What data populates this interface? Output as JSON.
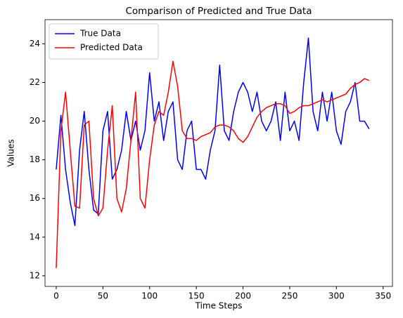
{
  "chart_data": {
    "type": "line",
    "title": "Comparison of Predicted and True Data",
    "x_label": "Time Steps",
    "y_label": "Values",
    "x": [
      0,
      5,
      10,
      15,
      20,
      25,
      30,
      35,
      40,
      45,
      50,
      55,
      60,
      65,
      70,
      75,
      80,
      85,
      90,
      95,
      100,
      105,
      110,
      115,
      120,
      125,
      130,
      135,
      140,
      145,
      150,
      155,
      160,
      165,
      170,
      175,
      180,
      185,
      190,
      195,
      200,
      205,
      210,
      215,
      220,
      225,
      230,
      235,
      240,
      245,
      250,
      255,
      260,
      265,
      270,
      275,
      280,
      285,
      290,
      295,
      300,
      305,
      310,
      315,
      320,
      325,
      330,
      335
    ],
    "series": [
      {
        "name": "True Data",
        "color": "#0000ff",
        "values": [
          17.5,
          20.3,
          17.5,
          15.8,
          14.6,
          18.5,
          20.5,
          17.5,
          15.4,
          15.2,
          19.5,
          20.5,
          17.0,
          17.5,
          18.5,
          20.5,
          19.0,
          20.0,
          18.5,
          19.5,
          22.5,
          20.0,
          21.0,
          19.0,
          20.5,
          21.0,
          18.0,
          17.5,
          19.5,
          20.0,
          17.5,
          17.5,
          17.0,
          18.5,
          19.5,
          22.9,
          19.5,
          19.0,
          20.5,
          21.5,
          22.0,
          21.5,
          20.5,
          21.5,
          20.0,
          19.5,
          20.0,
          21.0,
          19.0,
          21.5,
          19.5,
          20.0,
          19.0,
          22.0,
          24.3,
          20.5,
          19.5,
          21.5,
          20.0,
          21.5,
          19.5,
          18.8,
          20.5,
          21.0,
          22.0,
          20.0,
          20.0,
          19.6
        ]
      },
      {
        "name": "Predicted Data",
        "color": "#ff0000",
        "values": [
          12.4,
          19.5,
          21.5,
          18.5,
          15.6,
          15.5,
          19.8,
          20.0,
          16.0,
          15.1,
          15.5,
          18.5,
          20.8,
          16.0,
          15.3,
          16.5,
          19.0,
          21.5,
          16.0,
          15.5,
          18.0,
          19.8,
          20.5,
          20.3,
          21.5,
          23.1,
          21.8,
          19.5,
          19.1,
          19.1,
          19.0,
          19.2,
          19.3,
          19.4,
          19.7,
          19.8,
          19.8,
          19.7,
          19.5,
          19.1,
          18.9,
          19.2,
          19.7,
          20.2,
          20.5,
          20.7,
          20.8,
          20.9,
          20.9,
          20.8,
          20.4,
          20.5,
          20.7,
          20.8,
          20.8,
          20.9,
          21.0,
          21.1,
          21.0,
          21.1,
          21.2,
          21.3,
          21.4,
          21.7,
          21.9,
          22.0,
          22.2,
          22.1
        ]
      }
    ],
    "xlim": [
      -12,
      360
    ],
    "ylim": [
      11.45,
      25.25
    ],
    "xticks": [
      0,
      50,
      100,
      150,
      200,
      250,
      300,
      350
    ],
    "yticks": [
      12,
      14,
      16,
      18,
      20,
      22,
      24
    ],
    "legend": "upper left",
    "grid": false
  }
}
